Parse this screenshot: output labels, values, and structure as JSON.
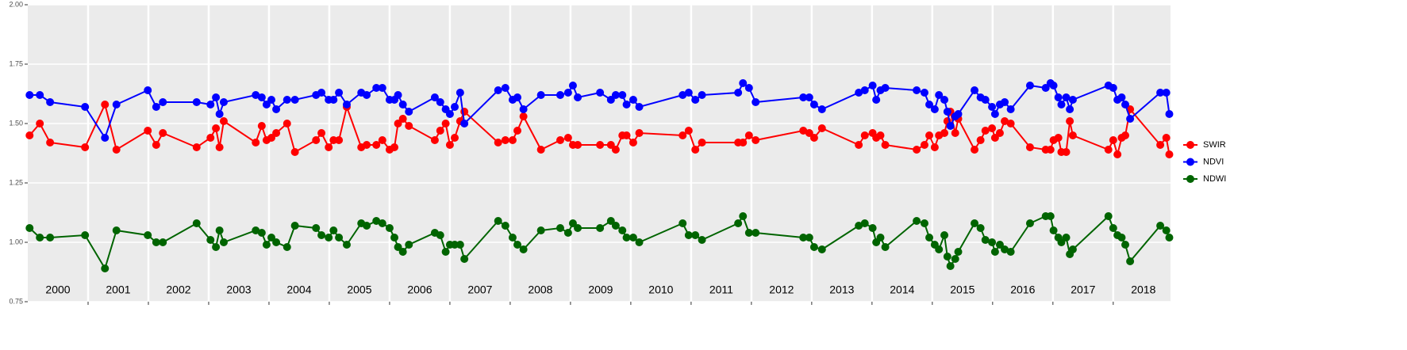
{
  "chart_data": {
    "type": "line",
    "x": [
      2000.03,
      2000.2,
      2000.37,
      2000.95,
      2001.28,
      2001.47,
      2001.99,
      2002.13,
      2002.24,
      2002.8,
      2003.03,
      2003.12,
      2003.18,
      2003.25,
      2003.78,
      2003.88,
      2003.96,
      2004.04,
      2004.12,
      2004.3,
      2004.43,
      2004.78,
      2004.87,
      2004.99,
      2005.07,
      2005.16,
      2005.29,
      2005.53,
      2005.62,
      2005.78,
      2005.88,
      2006.0,
      2006.08,
      2006.14,
      2006.22,
      2006.32,
      2006.75,
      2006.84,
      2006.93,
      2007.0,
      2007.08,
      2007.17,
      2007.24,
      2007.8,
      2007.92,
      2008.04,
      2008.12,
      2008.22,
      2008.51,
      2008.83,
      2008.96,
      2009.04,
      2009.12,
      2009.49,
      2009.67,
      2009.75,
      2009.86,
      2009.93,
      2010.04,
      2010.14,
      2010.86,
      2010.96,
      2011.07,
      2011.18,
      2011.78,
      2011.86,
      2011.96,
      2012.07,
      2012.86,
      2012.96,
      2013.04,
      2013.17,
      2013.78,
      2013.88,
      2014.01,
      2014.07,
      2014.14,
      2014.22,
      2014.74,
      2014.87,
      2014.95,
      2015.04,
      2015.11,
      2015.2,
      2015.25,
      2015.3,
      2015.38,
      2015.43,
      2015.7,
      2015.8,
      2015.88,
      2015.99,
      2016.04,
      2016.12,
      2016.2,
      2016.3,
      2016.62,
      2016.88,
      2016.96,
      2017.01,
      2017.09,
      2017.14,
      2017.22,
      2017.28,
      2017.33,
      2017.92,
      2018.0,
      2018.07,
      2018.14,
      2018.2,
      2018.28,
      2018.78,
      2018.88,
      2018.93
    ],
    "series": [
      {
        "name": "SWIR",
        "color": "#ff0000",
        "values": [
          1.45,
          1.5,
          1.42,
          1.4,
          1.58,
          1.39,
          1.47,
          1.41,
          1.46,
          1.4,
          1.44,
          1.48,
          1.4,
          1.51,
          1.42,
          1.49,
          1.43,
          1.44,
          1.46,
          1.5,
          1.38,
          1.43,
          1.46,
          1.4,
          1.43,
          1.43,
          1.57,
          1.4,
          1.41,
          1.41,
          1.43,
          1.39,
          1.4,
          1.5,
          1.52,
          1.49,
          1.43,
          1.47,
          1.5,
          1.41,
          1.44,
          1.51,
          1.55,
          1.42,
          1.43,
          1.43,
          1.47,
          1.53,
          1.39,
          1.43,
          1.44,
          1.41,
          1.41,
          1.41,
          1.41,
          1.39,
          1.45,
          1.45,
          1.42,
          1.46,
          1.45,
          1.47,
          1.39,
          1.42,
          1.42,
          1.42,
          1.45,
          1.43,
          1.47,
          1.46,
          1.44,
          1.48,
          1.41,
          1.45,
          1.46,
          1.44,
          1.45,
          1.41,
          1.39,
          1.41,
          1.45,
          1.4,
          1.45,
          1.46,
          1.51,
          1.55,
          1.46,
          1.52,
          1.39,
          1.43,
          1.47,
          1.48,
          1.44,
          1.46,
          1.51,
          1.5,
          1.4,
          1.39,
          1.39,
          1.43,
          1.44,
          1.38,
          1.38,
          1.51,
          1.45,
          1.39,
          1.43,
          1.37,
          1.44,
          1.45,
          1.56,
          1.41,
          1.44,
          1.37
        ]
      },
      {
        "name": "NDVI",
        "color": "#0000ff",
        "values": [
          1.62,
          1.62,
          1.59,
          1.57,
          1.44,
          1.58,
          1.64,
          1.57,
          1.59,
          1.59,
          1.58,
          1.61,
          1.54,
          1.59,
          1.62,
          1.61,
          1.58,
          1.6,
          1.56,
          1.6,
          1.6,
          1.62,
          1.63,
          1.6,
          1.6,
          1.63,
          1.58,
          1.63,
          1.62,
          1.65,
          1.65,
          1.6,
          1.6,
          1.62,
          1.58,
          1.55,
          1.61,
          1.59,
          1.56,
          1.54,
          1.57,
          1.63,
          1.5,
          1.64,
          1.65,
          1.6,
          1.61,
          1.56,
          1.62,
          1.62,
          1.63,
          1.66,
          1.61,
          1.63,
          1.6,
          1.62,
          1.62,
          1.58,
          1.6,
          1.57,
          1.62,
          1.63,
          1.6,
          1.62,
          1.63,
          1.67,
          1.65,
          1.59,
          1.61,
          1.61,
          1.58,
          1.56,
          1.63,
          1.64,
          1.66,
          1.6,
          1.64,
          1.65,
          1.64,
          1.63,
          1.58,
          1.56,
          1.62,
          1.6,
          1.55,
          1.49,
          1.53,
          1.54,
          1.64,
          1.61,
          1.6,
          1.57,
          1.54,
          1.58,
          1.59,
          1.56,
          1.66,
          1.65,
          1.67,
          1.66,
          1.61,
          1.58,
          1.61,
          1.56,
          1.6,
          1.66,
          1.65,
          1.6,
          1.61,
          1.58,
          1.52,
          1.63,
          1.63,
          1.54
        ]
      },
      {
        "name": "NDWI",
        "color": "#006400",
        "values": [
          1.06,
          1.02,
          1.02,
          1.03,
          0.89,
          1.05,
          1.03,
          1.0,
          1.0,
          1.08,
          1.01,
          0.98,
          1.05,
          1.0,
          1.05,
          1.04,
          0.99,
          1.02,
          1.0,
          0.98,
          1.07,
          1.06,
          1.03,
          1.02,
          1.05,
          1.02,
          0.99,
          1.08,
          1.07,
          1.09,
          1.08,
          1.06,
          1.02,
          0.98,
          0.96,
          0.99,
          1.04,
          1.03,
          0.96,
          0.99,
          0.99,
          0.99,
          0.93,
          1.09,
          1.07,
          1.02,
          0.99,
          0.97,
          1.05,
          1.06,
          1.04,
          1.08,
          1.06,
          1.06,
          1.09,
          1.07,
          1.05,
          1.02,
          1.02,
          1.0,
          1.08,
          1.03,
          1.03,
          1.01,
          1.08,
          1.11,
          1.04,
          1.04,
          1.02,
          1.02,
          0.98,
          0.97,
          1.07,
          1.08,
          1.06,
          1.0,
          1.02,
          0.98,
          1.09,
          1.08,
          1.02,
          0.99,
          0.97,
          1.03,
          0.94,
          0.9,
          0.93,
          0.96,
          1.08,
          1.06,
          1.01,
          1.0,
          0.96,
          0.99,
          0.97,
          0.96,
          1.08,
          1.11,
          1.11,
          1.05,
          1.02,
          1.0,
          1.02,
          0.95,
          0.97,
          1.11,
          1.06,
          1.03,
          1.02,
          0.99,
          0.92,
          1.07,
          1.05,
          1.02
        ]
      }
    ],
    "year_labels": [
      "2000",
      "2001",
      "2002",
      "2003",
      "2004",
      "2005",
      "2006",
      "2007",
      "2008",
      "2009",
      "2010",
      "2011",
      "2012",
      "2013",
      "2014",
      "2015",
      "2016",
      "2017",
      "2018"
    ],
    "xlim": [
      2000,
      2018.95
    ],
    "xticks": [
      2001,
      2002,
      2003,
      2004,
      2005,
      2006,
      2007,
      2008,
      2009,
      2010,
      2011,
      2012,
      2013,
      2014,
      2015,
      2016,
      2017,
      2018
    ],
    "ylim": [
      0.75,
      2
    ],
    "yticks": [
      {
        "value": 0.75,
        "label": "0.75"
      },
      {
        "value": 1,
        "label": "1.00"
      },
      {
        "value": 1.25,
        "label": "1.25"
      },
      {
        "value": 1.5,
        "label": "1.50"
      },
      {
        "value": 1.75,
        "label": "1.75"
      },
      {
        "value": 2,
        "label": "2.00"
      }
    ],
    "grid": true,
    "legend": "right"
  }
}
